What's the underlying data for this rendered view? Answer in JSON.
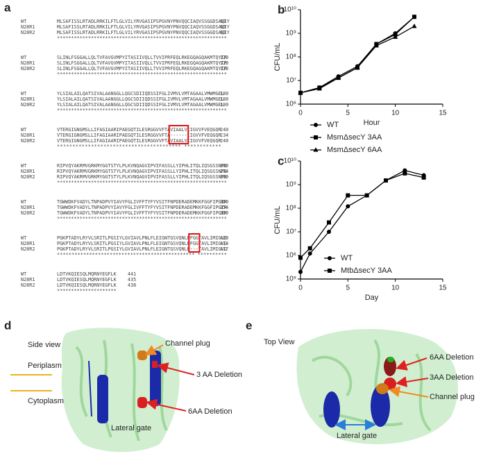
{
  "alignment": {
    "panel": "a",
    "blocks": [
      {
        "rows": [
          [
            "WT",
            "MLSAFISSLRTADLRRKILFTLGLVILYRVGASIPSPGVNYPNVQQCIAQVSSGGDSAQIY",
            "60"
          ],
          [
            "N28R1",
            "MLSAFISSLRTADLRRKILFTLGLVILYRVGASIPSPGVNYPNVQQCIAQVSSGGDSAQIY",
            "60"
          ],
          [
            "N28R2",
            "MLSAFISSLRTADLRRKILFTLGLVILYRVGASIPSPGVNYPNVQQCIAQVSSGGDSAQIY",
            "60"
          ]
        ],
        "stars": "************************************************************"
      },
      {
        "rows": [
          [
            "WT",
            "SLINLFSGGALLQLTVFAVGVMPYITASIIVQLLTVVIPRFEQLRKEGQAGQAKMTQYTR",
            "120"
          ],
          [
            "N28R1",
            "SLINLFSGGALLQLTVFAVGVMPYITASIIVQLLTVVIPRFEQLRKEGQAGQAKMTQYTR",
            "120"
          ],
          [
            "N28R2",
            "SLINLFSGGALLQLTVFAVGVMPYITASIIVQLLTVVIPRFEQLRKEGQAGQAKMTQYTR",
            "120"
          ]
        ],
        "stars": "************************************************************"
      },
      {
        "rows": [
          [
            "WT",
            "YLSIALAILQATSIVALAANGGLLQGCSDIIQDSSIFGLIVMVLVMTAGAALVMWMGEL",
            "180"
          ],
          [
            "N28R1",
            "YLSIALAILQATSIVALAANGGLLQGCSDIIQDSSIFGLIVMVLVMTAGAALVMWMGEL",
            "180"
          ],
          [
            "N28R2",
            "YLSIALAILQATSIVALAANGGLLQGCSDIIQDSSIFGLIVMVLVMTAGAALVMWMGEL",
            "180"
          ]
        ],
        "stars": "************************************************************"
      },
      {
        "rows": [
          [
            "WT",
            "VTERGIGNGMSLLIFAGIAARIPAEGQTILESRGGVVFTAVIAALVIIGVVFVEQGQR",
            "240"
          ],
          [
            "N28R1",
            "VTERGIGNGMSLLIFAGIAARIPAEGQTILESRGGVVFTA------IIGVVFVEQGQR",
            "234"
          ],
          [
            "N28R2",
            "VTERGIGNGMSLLIFAGIAARIPAEGQTILESRGGVVFTAVIAALVIIGVVFVEQGQR",
            "240"
          ]
        ],
        "stars": "****************************************      ************"
      },
      {
        "rows": [
          [
            "WT",
            "RIPVQYAKRMVGRKMYGGTSTYLPLKVNQAGVIPVIFASSLLYIPHLITQLIQSGSSNPG",
            "300"
          ],
          [
            "N28R1",
            "RIPVQYAKRMVGRKMYGGTSTYLPLKVNQAGVIPVIFASSLLYIPHLITQLIQSGSSNPG",
            "294"
          ],
          [
            "N28R2",
            "RIPVQYAKRMVGRKMYGGTSTYLPLKVNQAGVIPVIFASSLLYIPHLITQLIQSGSSNPG",
            "300"
          ]
        ],
        "stars": "************************************************************"
      },
      {
        "rows": [
          [
            "WT",
            "TGWWDKFVADYLTNPADPVYIAVYFGLIVFFTYFYVSITFNPDERADEMKKFGGFIPGIR",
            "360"
          ],
          [
            "N28R1",
            "TGWWDKFVADYLTNPADPVYIAVYFGLIVFFTYFYVSITFNPDERADEMKKFGGFIPGIR",
            "354"
          ],
          [
            "N28R2",
            "TGWWDKFVADYLTNPADPVYIAVYFGLIVFFTYFYVSITFNPDERADEMKKFGGFIPGIR",
            "360"
          ]
        ],
        "stars": "************************************************************"
      },
      {
        "rows": [
          [
            "WT",
            "PGKPTADYLRYVLSRITLPGSIYLGVIAVLPNLFLEIGNTGSVQNLPFGGTAVLIMIGVG",
            "420"
          ],
          [
            "N28R1",
            "PGKPTADYLRYVLSRITLPGSIYLGVIAVLPNLFLEIGNTGSVQNLPFGGTAVLIMIGVG",
            "414"
          ],
          [
            "N28R2",
            "PGKPTADYLRYVLSRITLPGSIYLGVIAVLPNLFLEIGNTGSVQNLP---TAVLIMIGVG",
            "417"
          ]
        ],
        "stars": "***********************************************   **********"
      },
      {
        "rows": [
          [
            "WT",
            "LDTVKQIESQLMQRNYEGFLK",
            "441"
          ],
          [
            "N28R1",
            "LDTVKQIESQLMQRNYEGFLK",
            "435"
          ],
          [
            "N28R2",
            "LDTVKQIESQLMQRNYEGFLK",
            "438"
          ]
        ],
        "stars": "*********************"
      }
    ]
  },
  "chart_data": [
    {
      "type": "line",
      "panel": "b",
      "xlabel": "Hour",
      "ylabel": "CFU/mL",
      "log_y": true,
      "x": [
        0,
        2,
        4,
        6,
        8,
        10,
        12
      ],
      "xlim": [
        0,
        15
      ],
      "xticks": [
        0,
        5,
        10,
        15
      ],
      "ylim": [
        1000000,
        10000000000
      ],
      "yticks": [
        {
          "value": 1000000,
          "label": "10⁶"
        },
        {
          "value": 10000000,
          "label": "10⁷"
        },
        {
          "value": 100000000,
          "label": "10⁸"
        },
        {
          "value": 1000000000,
          "label": "10⁹"
        },
        {
          "value": 10000000000,
          "label": "10¹⁰"
        }
      ],
      "series": [
        {
          "name": "WT",
          "color": "#000000",
          "marker": "circle",
          "values": [
            3000000,
            5000000,
            15000000,
            40000000,
            350000000,
            1000000000,
            5000000000
          ]
        },
        {
          "name": "MsmΔsecY 3AA",
          "color": "#000000",
          "marker": "square",
          "values": [
            3000000,
            5000000,
            13000000,
            35000000,
            350000000,
            900000000,
            5000000000
          ]
        },
        {
          "name": "MsmΔsecY 6AA",
          "color": "#000000",
          "marker": "triangle",
          "values": [
            3000000,
            4500000,
            13000000,
            35000000,
            300000000,
            700000000,
            2000000000
          ]
        }
      ]
    },
    {
      "type": "line",
      "panel": "c",
      "xlabel": "Day",
      "ylabel": "CFU/mL",
      "log_y": true,
      "x": [
        0,
        1,
        3,
        5,
        7,
        9,
        11,
        13
      ],
      "xlim": [
        0,
        15
      ],
      "xticks": [
        0,
        5,
        10,
        15
      ],
      "ylim": [
        100000,
        10000000000
      ],
      "yticks": [
        {
          "value": 100000,
          "label": "10⁵"
        },
        {
          "value": 1000000,
          "label": "10⁶"
        },
        {
          "value": 10000000,
          "label": "10⁷"
        },
        {
          "value": 100000000,
          "label": "10⁸"
        },
        {
          "value": 1000000000,
          "label": "10⁹"
        },
        {
          "value": 10000000000,
          "label": "10¹⁰"
        }
      ],
      "series": [
        {
          "name": "WT",
          "color": "#000000",
          "marker": "circle",
          "values": [
            200000,
            1200000,
            10000000,
            120000000,
            350000000,
            1500000000,
            4000000000,
            2500000000
          ]
        },
        {
          "name": "MtbΔsecY 3AA",
          "color": "#000000",
          "marker": "square",
          "values": [
            800000,
            2000000,
            25000000,
            350000000,
            350000000,
            1500000000,
            3000000000,
            2000000000
          ]
        }
      ]
    }
  ],
  "structures": {
    "d": {
      "panel": "d",
      "view": "Side view",
      "channel_plug": "Channel plug",
      "periplasm": "Periplasm",
      "cytoplasm": "Cytoplasm",
      "deletion3": "3 AA Deletion",
      "deletion6": "6AA Deletion",
      "lateral_gate": "Lateral gate"
    },
    "e": {
      "panel": "e",
      "view": "Top View",
      "deletion6": "6AA Deletion",
      "deletion3": "3AA Deletion",
      "channel_plug": "Channel plug",
      "lateral_gate": "Lateral gate"
    }
  }
}
